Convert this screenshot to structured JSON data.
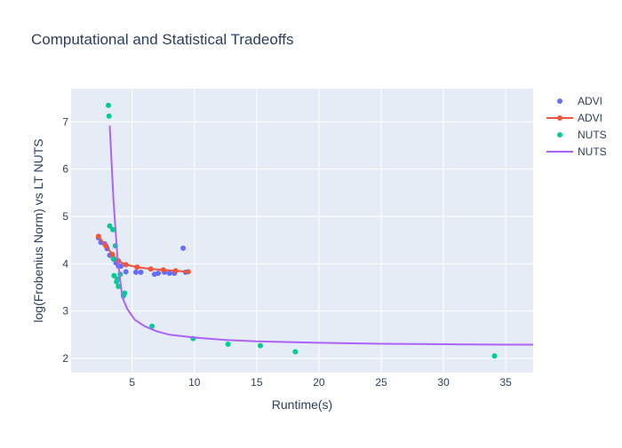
{
  "chart_data": {
    "type": "scatter",
    "title": "Computational and Statistical Tradeoffs",
    "xlabel": "Runtime(s)",
    "ylabel": "log(Frobenius Norm) vs LT NUTS",
    "xlim": [
      0.1,
      37.2
    ],
    "ylim": [
      1.7,
      7.7
    ],
    "xticks": [
      5,
      10,
      15,
      20,
      25,
      30,
      35
    ],
    "yticks": [
      2,
      3,
      4,
      5,
      6,
      7
    ],
    "grid": true,
    "legend_position": "right",
    "series": [
      {
        "name": "ADVI",
        "mode": "markers",
        "color": "#636efa",
        "x": [
          2.3,
          2.5,
          2.8,
          3.0,
          3.2,
          3.5,
          3.7,
          3.9,
          4.1,
          4.5,
          5.3,
          5.7,
          6.8,
          7.1,
          7.6,
          8.0,
          8.4,
          9.1,
          9.3
        ],
        "y": [
          4.55,
          4.45,
          4.42,
          4.32,
          4.18,
          4.1,
          4.02,
          3.95,
          3.95,
          3.83,
          3.82,
          3.82,
          3.78,
          3.8,
          3.82,
          3.8,
          3.8,
          4.33,
          3.82
        ]
      },
      {
        "name": "ADVI",
        "mode": "lines+markers",
        "color": "#ef553b",
        "x": [
          2.3,
          2.9,
          3.4,
          3.9,
          4.5,
          5.4,
          6.5,
          7.5,
          8.5,
          9.5
        ],
        "y": [
          4.58,
          4.38,
          4.2,
          4.06,
          3.98,
          3.93,
          3.89,
          3.87,
          3.85,
          3.83
        ]
      },
      {
        "name": "NUTS",
        "mode": "markers",
        "color": "#00cc96",
        "x": [
          3.1,
          3.15,
          3.2,
          3.45,
          3.5,
          3.55,
          3.65,
          3.75,
          3.8,
          3.9,
          4.05,
          4.3,
          4.4,
          6.6,
          9.9,
          12.7,
          15.3,
          18.1,
          34.1
        ],
        "y": [
          7.35,
          7.12,
          4.8,
          4.72,
          4.1,
          3.75,
          4.38,
          3.62,
          3.68,
          3.52,
          3.78,
          3.32,
          3.38,
          2.68,
          2.42,
          2.3,
          2.27,
          2.14,
          2.05
        ]
      },
      {
        "name": "NUTS",
        "mode": "lines",
        "color": "#ab63fa",
        "x": [
          3.2,
          3.5,
          3.8,
          4.2,
          4.6,
          5.2,
          6.0,
          7.0,
          8.0,
          10.0,
          12.5,
          15.0,
          20.0,
          25.0,
          30.0,
          35.0,
          37.2
        ],
        "y": [
          6.92,
          5.35,
          4.2,
          3.3,
          3.05,
          2.82,
          2.68,
          2.57,
          2.5,
          2.44,
          2.39,
          2.36,
          2.33,
          2.31,
          2.3,
          2.29,
          2.29
        ]
      }
    ]
  }
}
